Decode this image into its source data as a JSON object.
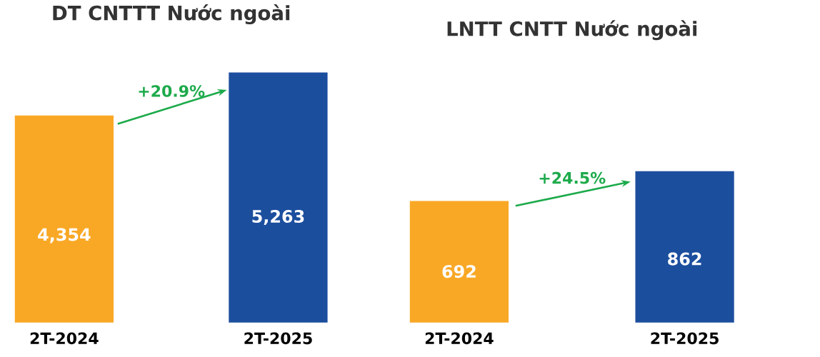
{
  "chart_data": [
    {
      "type": "bar",
      "title": "DT CNTTT Nước ngoài",
      "categories": [
        "2T-2024",
        "2T-2025"
      ],
      "values": [
        4354,
        5263
      ],
      "colors": [
        "#f9a826",
        "#1c4e9e"
      ],
      "value_labels": [
        "4,354",
        "5,263"
      ],
      "annotations": [
        "+20.9%"
      ]
    },
    {
      "type": "bar",
      "title": "LNTT CNTT Nước ngoài",
      "categories": [
        "2T-2024",
        "2T-2025"
      ],
      "values": [
        692,
        862
      ],
      "colors": [
        "#f9a826",
        "#1c4e9e"
      ],
      "value_labels": [
        "692",
        "862"
      ],
      "annotations": [
        "+24.5%"
      ]
    }
  ]
}
